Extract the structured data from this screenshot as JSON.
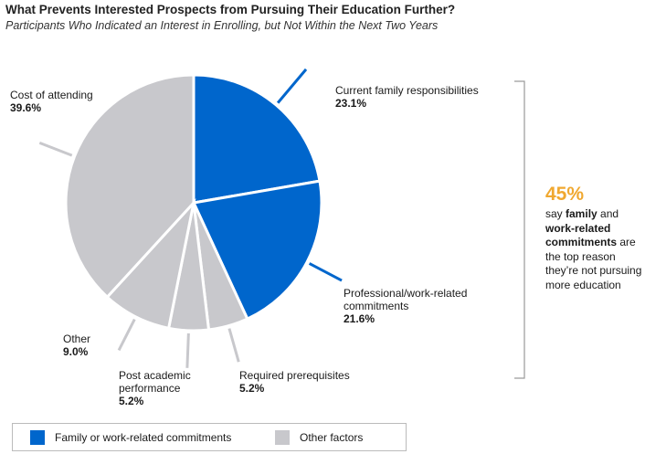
{
  "title": "What Prevents Interested Prospects from Pursuing Their Education Further?",
  "subtitle": "Participants Who Indicated an Interest in Enrolling, but Not Within the Next Two Years",
  "colors": {
    "family_work": "#0066cc",
    "other": "#c8c8cc",
    "accent": "#f0a830",
    "separator": "#ffffff"
  },
  "chart_data": {
    "type": "pie",
    "start_angle_deg": 0,
    "direction": "clockwise",
    "slices": [
      {
        "label": "Current family responsibilities",
        "value": 23.1,
        "value_text": "23.1%",
        "group": "family_work"
      },
      {
        "label": "Professional/work-related commitments",
        "value": 21.6,
        "value_text": "21.6%",
        "group": "family_work"
      },
      {
        "label": "Required prerequisites",
        "value": 5.2,
        "value_text": "5.2%",
        "group": "other"
      },
      {
        "label": "Post academic performance",
        "value": 5.2,
        "value_text": "5.2%",
        "group": "other"
      },
      {
        "label": "Other",
        "value": 9.0,
        "value_text": "9.0%",
        "group": "other"
      },
      {
        "label": "Cost of attending",
        "value": 39.6,
        "value_text": "39.6%",
        "group": "other"
      }
    ],
    "legend": [
      {
        "label": "Family or work-related commitments",
        "group": "family_work"
      },
      {
        "label": "Other factors",
        "group": "other"
      }
    ]
  },
  "callout": {
    "big": "45%",
    "line1": "say ",
    "bold1": "family",
    "line2": " and ",
    "bold2": "work-related commitments",
    "line3": " are the top reason they’re not pursuing more education"
  }
}
